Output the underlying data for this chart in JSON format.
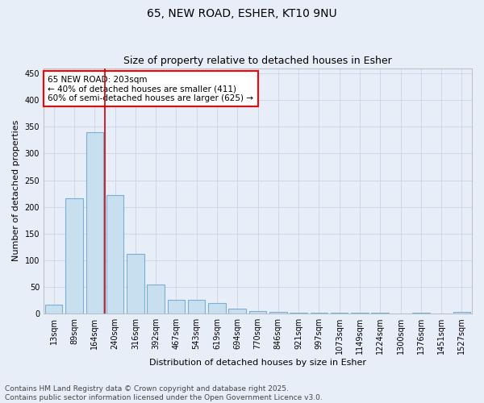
{
  "title_line1": "65, NEW ROAD, ESHER, KT10 9NU",
  "title_line2": "Size of property relative to detached houses in Esher",
  "xlabel": "Distribution of detached houses by size in Esher",
  "ylabel": "Number of detached properties",
  "categories": [
    "13sqm",
    "89sqm",
    "164sqm",
    "240sqm",
    "316sqm",
    "392sqm",
    "467sqm",
    "543sqm",
    "619sqm",
    "694sqm",
    "770sqm",
    "846sqm",
    "921sqm",
    "997sqm",
    "1073sqm",
    "1149sqm",
    "1224sqm",
    "1300sqm",
    "1376sqm",
    "1451sqm",
    "1527sqm"
  ],
  "values": [
    16,
    216,
    340,
    222,
    112,
    54,
    26,
    25,
    19,
    9,
    5,
    3,
    2,
    2,
    2,
    1,
    1,
    0,
    1,
    0,
    3
  ],
  "bar_color": "#c8dff0",
  "bar_edge_color": "#7aafd4",
  "vline_color": "#cc0000",
  "vline_x_index": 2.5,
  "annotation_text_line1": "65 NEW ROAD: 203sqm",
  "annotation_text_line2": "← 40% of detached houses are smaller (411)",
  "annotation_text_line3": "60% of semi-detached houses are larger (625) →",
  "ylim": [
    0,
    460
  ],
  "yticks": [
    0,
    50,
    100,
    150,
    200,
    250,
    300,
    350,
    400,
    450
  ],
  "grid_color": "#c8d4e8",
  "background_color": "#e8eef8",
  "footer_line1": "Contains HM Land Registry data © Crown copyright and database right 2025.",
  "footer_line2": "Contains public sector information licensed under the Open Government Licence v3.0.",
  "title_fontsize": 10,
  "subtitle_fontsize": 9,
  "axis_label_fontsize": 8,
  "tick_fontsize": 7,
  "annotation_fontsize": 7.5,
  "footer_fontsize": 6.5
}
